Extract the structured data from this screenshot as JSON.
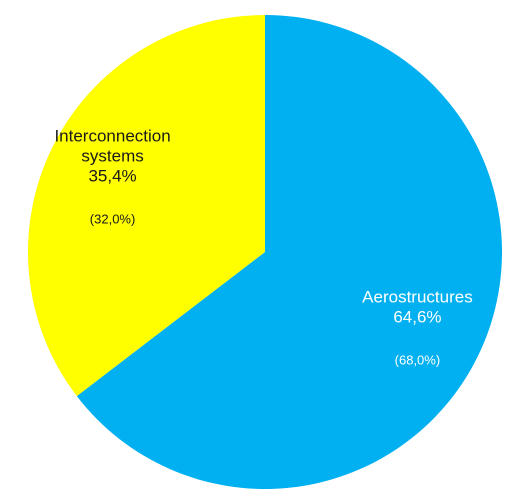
{
  "chart_data": {
    "type": "pie",
    "title": "",
    "start_angle_deg": 0,
    "direction": "clockwise",
    "slices": [
      {
        "label_lines": [
          "Aerostructures"
        ],
        "value": 64.6,
        "value_text": "64,6%",
        "previous_text": "(68,0%)",
        "color": "#00b0f0",
        "text_color": "#ffffff"
      },
      {
        "label_lines": [
          "Interconnection",
          "systems"
        ],
        "value": 35.4,
        "value_text": "35,4%",
        "previous_text": "(32,0%)",
        "color": "#ffff00",
        "text_color": "#1a1a1a"
      }
    ]
  }
}
